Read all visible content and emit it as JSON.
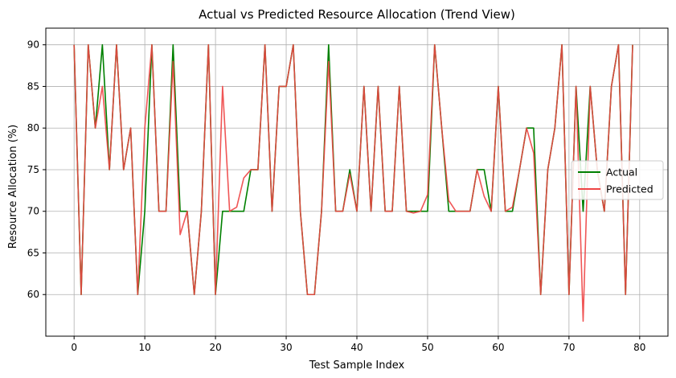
{
  "chart_data": {
    "type": "line",
    "title": "Actual vs Predicted Resource Allocation (Trend View)",
    "xlabel": "Test Sample Index",
    "ylabel": "Resource Allocation (%)",
    "xlim": [
      -4,
      84
    ],
    "ylim": [
      55,
      92
    ],
    "xticks": [
      0,
      10,
      20,
      30,
      40,
      50,
      60,
      70,
      80
    ],
    "yticks": [
      60,
      65,
      70,
      75,
      80,
      85,
      90
    ],
    "grid": true,
    "legend_position": "center-right",
    "x": [
      0,
      1,
      2,
      3,
      4,
      5,
      6,
      7,
      8,
      9,
      10,
      11,
      12,
      13,
      14,
      15,
      16,
      17,
      18,
      19,
      20,
      21,
      22,
      23,
      24,
      25,
      26,
      27,
      28,
      29,
      30,
      31,
      32,
      33,
      34,
      35,
      36,
      37,
      38,
      39,
      40,
      41,
      42,
      43,
      44,
      45,
      46,
      47,
      48,
      49,
      50,
      51,
      52,
      53,
      54,
      55,
      56,
      57,
      58,
      59,
      60,
      61,
      62,
      63,
      64,
      65,
      66,
      67,
      68,
      69,
      70,
      71,
      72,
      73,
      74,
      75,
      76,
      77,
      78,
      79
    ],
    "series": [
      {
        "name": "Actual",
        "color": "#008000",
        "values": [
          90,
          60,
          90,
          80,
          90,
          75,
          90,
          75,
          80,
          60,
          70,
          90,
          70,
          70,
          90,
          70,
          70,
          60,
          70,
          90,
          60,
          70,
          70,
          70,
          70,
          75,
          75,
          90,
          70,
          85,
          85,
          90,
          70,
          60,
          60,
          70,
          90,
          70,
          70,
          75,
          70,
          85,
          70,
          85,
          70,
          70,
          85,
          70,
          70,
          70,
          70,
          90,
          80,
          70,
          70,
          70,
          70,
          75,
          75,
          70,
          85,
          70,
          70,
          75,
          80,
          80,
          60,
          75,
          80,
          90,
          60,
          85,
          70,
          85,
          75,
          70,
          85,
          90,
          60,
          90
        ]
      },
      {
        "name": "Predicted",
        "color": "#ee4444",
        "values": [
          90,
          60,
          90,
          80,
          85,
          75,
          90,
          75,
          80,
          60,
          80,
          90,
          70,
          70,
          88,
          67.2,
          70,
          60,
          70,
          90,
          60,
          85,
          70,
          70.5,
          74,
          75,
          75,
          90,
          70,
          85,
          85,
          90,
          70,
          60,
          60,
          70,
          88,
          70,
          70,
          74.5,
          70,
          85,
          70,
          85,
          70,
          70,
          85,
          70,
          69.8,
          70,
          72,
          90,
          80,
          71.3,
          70,
          70,
          70,
          75,
          71.8,
          70,
          85,
          70,
          70.5,
          75,
          80,
          77,
          60,
          75,
          80,
          90,
          60,
          85,
          56.8,
          85,
          75,
          70,
          85,
          90,
          60,
          90
        ]
      }
    ]
  }
}
